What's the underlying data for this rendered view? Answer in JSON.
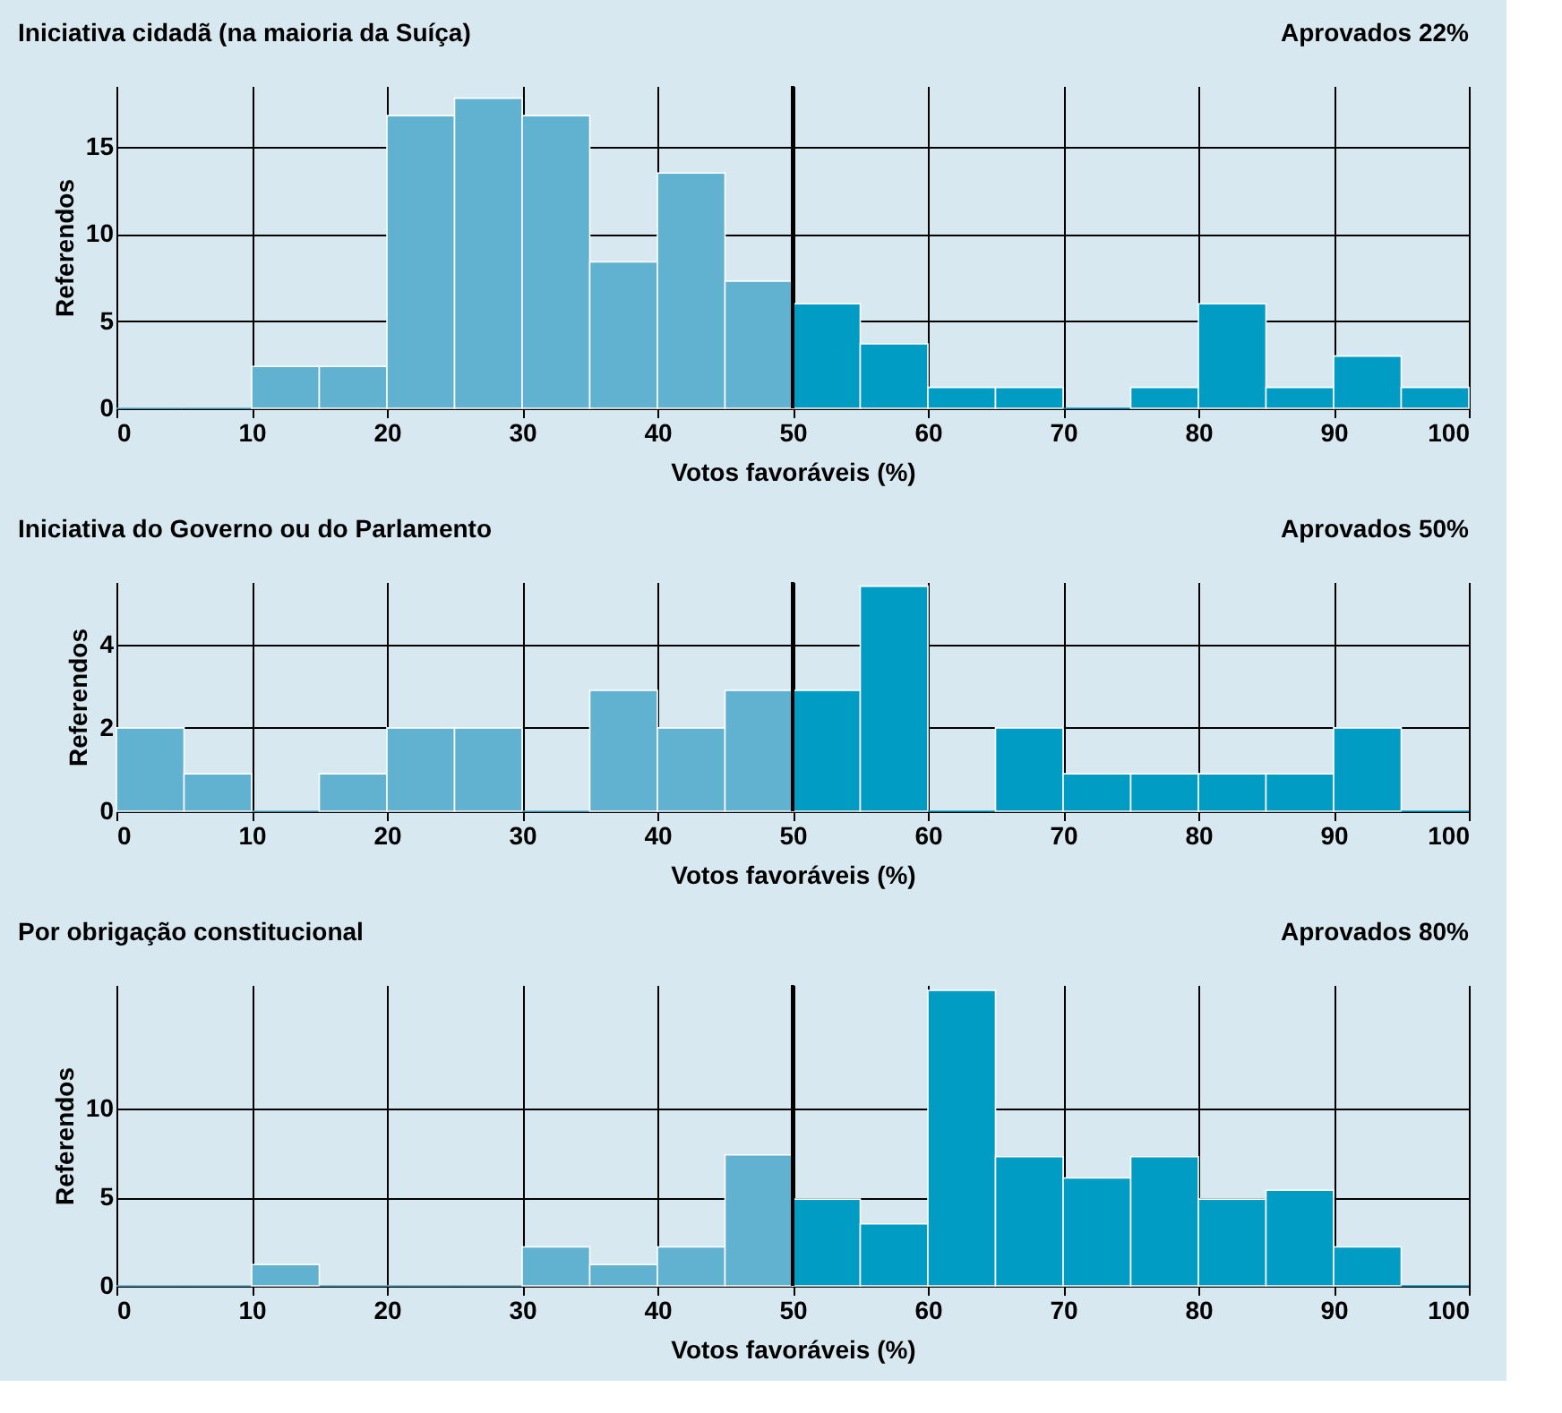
{
  "chart_data": [
    {
      "type": "histogram",
      "title": "Iniciativa cidadã (na maioria da Suíça)",
      "annotations": [
        "Aprovados 22%"
      ],
      "xlabel": "Votos favoráveis (%)",
      "ylabel": "Referendos",
      "bins": [
        0,
        5,
        10,
        15,
        20,
        25,
        30,
        35,
        40,
        45,
        50,
        55,
        60,
        65,
        70,
        75,
        80,
        85,
        90,
        95,
        100
      ],
      "values": [
        0,
        0,
        2.4,
        2.4,
        16.8,
        17.8,
        16.8,
        8.4,
        13.5,
        7.3,
        6.0,
        3.7,
        1.2,
        1.2,
        0,
        1.2,
        6.0,
        1.2,
        3.0,
        1.2
      ],
      "colors": [
        "#61b1d0",
        "#61b1d0",
        "#61b1d0",
        "#61b1d0",
        "#61b1d0",
        "#61b1d0",
        "#61b1d0",
        "#61b1d0",
        "#61b1d0",
        "#61b1d0",
        "#009cc4",
        "#009cc4",
        "#009cc4",
        "#009cc4",
        "#009cc4",
        "#009cc4",
        "#009cc4",
        "#009cc4",
        "#009cc4",
        "#009cc4"
      ],
      "xlim": [
        0,
        100
      ],
      "xticks": [
        0,
        10,
        20,
        30,
        40,
        50,
        60,
        70,
        80,
        90,
        100
      ],
      "ylim": [
        0,
        18.5
      ],
      "yticks": [
        0,
        5,
        10,
        15
      ],
      "grid": true,
      "ref_lines": [
        {
          "axis": "x",
          "value": 50,
          "color": "#000000"
        }
      ]
    },
    {
      "type": "histogram",
      "title": "Iniciativa do Governo ou do Parlamento",
      "annotations": [
        "Aprovados 50%"
      ],
      "xlabel": "Votos favoráveis (%)",
      "ylabel": "Referendos",
      "bins": [
        0,
        5,
        10,
        15,
        20,
        25,
        30,
        35,
        40,
        45,
        50,
        55,
        60,
        65,
        70,
        75,
        80,
        85,
        90,
        95,
        100
      ],
      "values": [
        2,
        0.9,
        0,
        0.9,
        2,
        2,
        0,
        2.9,
        2,
        2.9,
        2.9,
        5.4,
        0,
        2,
        0.9,
        0.9,
        0.9,
        0.9,
        2,
        0
      ],
      "colors": [
        "#61b1d0",
        "#61b1d0",
        "#61b1d0",
        "#61b1d0",
        "#61b1d0",
        "#61b1d0",
        "#61b1d0",
        "#61b1d0",
        "#61b1d0",
        "#61b1d0",
        "#009cc4",
        "#009cc4",
        "#009cc4",
        "#009cc4",
        "#009cc4",
        "#009cc4",
        "#009cc4",
        "#009cc4",
        "#009cc4",
        "#009cc4"
      ],
      "xlim": [
        0,
        100
      ],
      "xticks": [
        0,
        10,
        20,
        30,
        40,
        50,
        60,
        70,
        80,
        90,
        100
      ],
      "ylim": [
        0,
        5.5
      ],
      "yticks": [
        0,
        2,
        4
      ],
      "grid": true,
      "ref_lines": [
        {
          "axis": "x",
          "value": 50,
          "color": "#000000"
        }
      ]
    },
    {
      "type": "histogram",
      "title": "Por obrigação constitucional",
      "annotations": [
        "Aprovados 80%"
      ],
      "xlabel": "Votos favoráveis (%)",
      "ylabel": "Referendos",
      "bins": [
        0,
        5,
        10,
        15,
        20,
        25,
        30,
        35,
        40,
        45,
        50,
        55,
        60,
        65,
        70,
        75,
        80,
        85,
        90,
        95,
        100
      ],
      "values": [
        0,
        0,
        1.2,
        0,
        0,
        0,
        2.2,
        1.2,
        2.2,
        7.4,
        4.9,
        3.5,
        16.7,
        7.3,
        6.1,
        7.3,
        4.9,
        5.4,
        2.2,
        0
      ],
      "colors": [
        "#61b1d0",
        "#61b1d0",
        "#61b1d0",
        "#61b1d0",
        "#61b1d0",
        "#61b1d0",
        "#61b1d0",
        "#61b1d0",
        "#61b1d0",
        "#61b1d0",
        "#009cc4",
        "#009cc4",
        "#009cc4",
        "#009cc4",
        "#009cc4",
        "#009cc4",
        "#009cc4",
        "#009cc4",
        "#009cc4",
        "#009cc4"
      ],
      "xlim": [
        0,
        100
      ],
      "xticks": [
        0,
        10,
        20,
        30,
        40,
        50,
        60,
        70,
        80,
        90,
        100
      ],
      "ylim": [
        0,
        17
      ],
      "yticks": [
        0,
        5,
        10
      ],
      "grid": true,
      "ref_lines": [
        {
          "axis": "x",
          "value": 50,
          "color": "#000000"
        }
      ]
    }
  ]
}
